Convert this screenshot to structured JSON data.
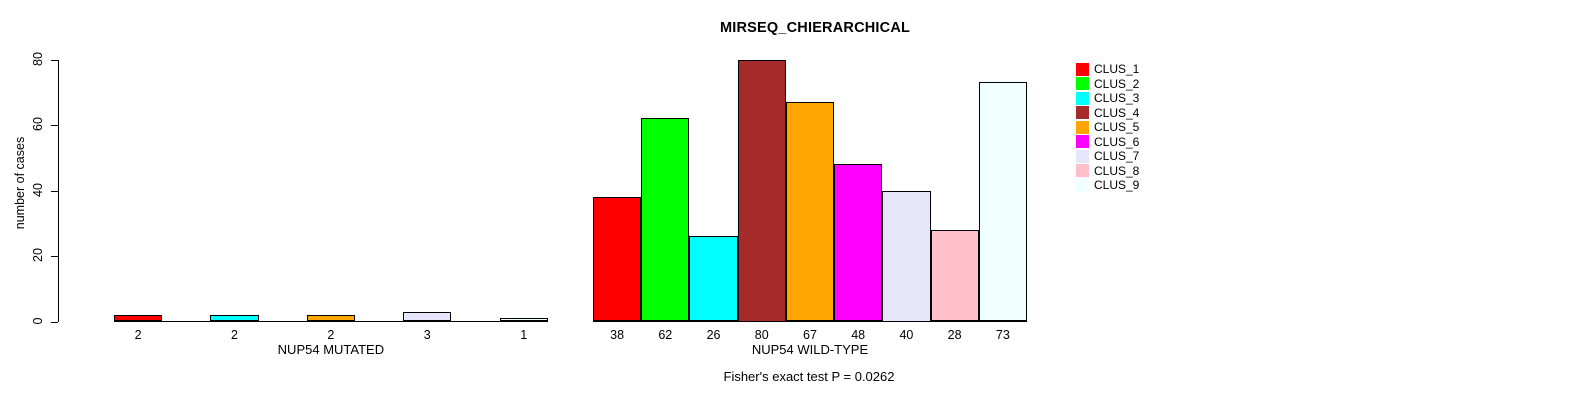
{
  "chart_data": {
    "type": "bar",
    "title": "MIRSEQ_CHIERARCHICAL",
    "ylabel": "number of cases",
    "ylim": [
      0,
      80
    ],
    "yticks": [
      0,
      20,
      40,
      60,
      80
    ],
    "grid": false,
    "legend_position": "topright",
    "annotation": "Fisher's exact test P = 0.0262",
    "clusters": [
      {
        "label": "CLUS_1",
        "color": "#FF0000"
      },
      {
        "label": "CLUS_2",
        "color": "#00FF00"
      },
      {
        "label": "CLUS_3",
        "color": "#00FFFF"
      },
      {
        "label": "CLUS_4",
        "color": "#A52A2A"
      },
      {
        "label": "CLUS_5",
        "color": "#FFA500"
      },
      {
        "label": "CLUS_6",
        "color": "#FF00FF"
      },
      {
        "label": "CLUS_7",
        "color": "#E6E6FA"
      },
      {
        "label": "CLUS_8",
        "color": "#FFC0CB"
      },
      {
        "label": "CLUS_9",
        "color": "#F0FFFF"
      }
    ],
    "groups": [
      {
        "xlabel": "NUP54 MUTATED",
        "bars": [
          {
            "cluster": "CLUS_1",
            "value": 2
          },
          {
            "cluster": "CLUS_3",
            "value": 2
          },
          {
            "cluster": "CLUS_5",
            "value": 2
          },
          {
            "cluster": "CLUS_7",
            "value": 3
          },
          {
            "cluster": "CLUS_9",
            "value": 1
          }
        ]
      },
      {
        "xlabel": "NUP54 WILD-TYPE",
        "bars": [
          {
            "cluster": "CLUS_1",
            "value": 38
          },
          {
            "cluster": "CLUS_2",
            "value": 62
          },
          {
            "cluster": "CLUS_3",
            "value": 26
          },
          {
            "cluster": "CLUS_4",
            "value": 80
          },
          {
            "cluster": "CLUS_5",
            "value": 67
          },
          {
            "cluster": "CLUS_6",
            "value": 48
          },
          {
            "cluster": "CLUS_7",
            "value": 40
          },
          {
            "cluster": "CLUS_8",
            "value": 28
          },
          {
            "cluster": "CLUS_9",
            "value": 73
          }
        ]
      }
    ]
  }
}
